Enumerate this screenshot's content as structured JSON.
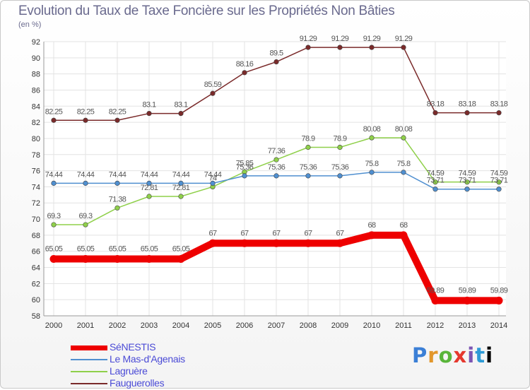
{
  "chart_data": {
    "type": "line",
    "title": "Evolution du Taux de Taxe Foncière sur les Propriétés Non Bâties",
    "subtitle": "(en %)",
    "xlabel": "",
    "ylabel": "",
    "ylim": [
      58,
      92
    ],
    "yticks": [
      58,
      60,
      62,
      64,
      66,
      68,
      70,
      72,
      74,
      76,
      78,
      80,
      82,
      84,
      86,
      88,
      90,
      92
    ],
    "categories": [
      "2000",
      "2001",
      "2002",
      "2003",
      "2004",
      "2005",
      "2006",
      "2007",
      "2008",
      "2009",
      "2010",
      "2011",
      "2012",
      "2013",
      "2014"
    ],
    "legend_position": "bottom-left",
    "series": [
      {
        "name": "SéNESTIS",
        "color": "#ee0000",
        "values": [
          65.05,
          65.05,
          65.05,
          65.05,
          65.05,
          67,
          67,
          67,
          67,
          67,
          68,
          68,
          59.89,
          59.89,
          59.89
        ],
        "labels": [
          "65.05",
          "65.05",
          "65.05",
          "65.05",
          "65.05",
          "67",
          "67",
          "67",
          "67",
          "67",
          "68",
          "68",
          "59.89",
          "59.89",
          "59.89"
        ]
      },
      {
        "name": "Le Mas-d'Agenais",
        "color": "#4f8fd0",
        "values": [
          74.44,
          74.44,
          74.44,
          74.44,
          74.44,
          74.44,
          75.36,
          75.36,
          75.36,
          75.36,
          75.8,
          75.8,
          73.71,
          73.71,
          73.71
        ],
        "labels": [
          "74.44",
          "74.44",
          "74.44",
          "74.44",
          "74.44",
          "74.44",
          "75.36",
          "75.36",
          "75.36",
          "75.36",
          "75.8",
          "75.8",
          "73.71",
          "73.71",
          "73.71"
        ]
      },
      {
        "name": "Lagruère",
        "color": "#8fd04a",
        "values": [
          69.3,
          69.3,
          71.38,
          72.81,
          72.81,
          74,
          75.85,
          77.36,
          78.9,
          78.9,
          80.08,
          80.08,
          74.59,
          74.59,
          74.59
        ],
        "labels": [
          "69.3",
          "69.3",
          "71.38",
          "72.81",
          "72.81",
          "74",
          "75.85",
          "77.36",
          "78.9",
          "78.9",
          "80.08",
          "80.08",
          "74.59",
          "74.59",
          "74.59"
        ]
      },
      {
        "name": "Fauguerolles",
        "color": "#7a2a2a",
        "values": [
          82.25,
          82.25,
          82.25,
          83.1,
          83.1,
          85.59,
          88.16,
          89.5,
          91.29,
          91.29,
          91.29,
          91.29,
          83.18,
          83.18,
          83.18
        ],
        "labels": [
          "82.25",
          "82.25",
          "82.25",
          "83.1",
          "83.1",
          "85.59",
          "88.16",
          "89.5",
          "91.29",
          "91.29",
          "91.29",
          "91.29",
          "83.18",
          "83.18",
          "83.18"
        ]
      }
    ]
  },
  "logo": {
    "letters": [
      "P",
      "r",
      "o",
      "x",
      "i",
      "t",
      "i"
    ]
  }
}
